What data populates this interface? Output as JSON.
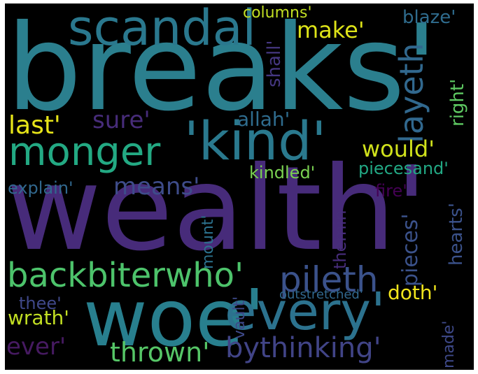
{
  "background_color": "#000000",
  "words": [
    {
      "text": "breaks'",
      "color": "#2b7f8e"
    },
    {
      "text": "wealth'",
      "color": "#472b7a"
    },
    {
      "text": "woe'",
      "color": "#287f8e"
    },
    {
      "text": "every'",
      "color": "#2c728e"
    },
    {
      "text": "'kind'",
      "color": "#2a798e"
    },
    {
      "text": "scandal",
      "color": "#2a788e"
    },
    {
      "text": "monger",
      "color": "#23a983"
    },
    {
      "text": "backbiterwho'",
      "color": "#4dc36b"
    },
    {
      "text": "pileth",
      "color": "#3b528b"
    },
    {
      "text": "bythinking'",
      "color": "#414487"
    },
    {
      "text": "thrown'",
      "color": "#56c667"
    },
    {
      "text": "ever'",
      "color": "#461a61"
    },
    {
      "text": "layeth",
      "color": "#31688e"
    },
    {
      "text": "make'",
      "color": "#dde318"
    },
    {
      "text": "would'",
      "color": "#d0e11c"
    },
    {
      "text": "last'",
      "color": "#e6e419"
    },
    {
      "text": "sure'",
      "color": "#472c7a"
    },
    {
      "text": "means'",
      "color": "#3e4c8a"
    },
    {
      "text": "explain'",
      "color": "#31688e"
    },
    {
      "text": "kindled'",
      "color": "#7ad151"
    },
    {
      "text": "allah'",
      "color": "#2f6c8e"
    },
    {
      "text": "piecesand'",
      "color": "#22a884"
    },
    {
      "text": "columns'",
      "color": "#c2df23"
    },
    {
      "text": "blaze'",
      "color": "#2f6c8e"
    },
    {
      "text": "shall'",
      "color": "#453781"
    },
    {
      "text": "right'",
      "color": "#5ec962"
    },
    {
      "text": "fire'",
      "color": "#440154"
    },
    {
      "text": "hearts'",
      "color": "#3b528b"
    },
    {
      "text": "pieces'",
      "color": "#3b528b"
    },
    {
      "text": "themin",
      "color": "#472d7b"
    },
    {
      "text": "mount'",
      "color": "#2c728e"
    },
    {
      "text": "vault'",
      "color": "#3e4989"
    },
    {
      "text": "outstretched'",
      "color": "#31688e"
    },
    {
      "text": "doth'",
      "color": "#f1e51d"
    },
    {
      "text": "made'",
      "color": "#3e4989"
    },
    {
      "text": "thee'",
      "color": "#3f4889"
    },
    {
      "text": "wrath'",
      "color": "#c2df23"
    }
  ]
}
